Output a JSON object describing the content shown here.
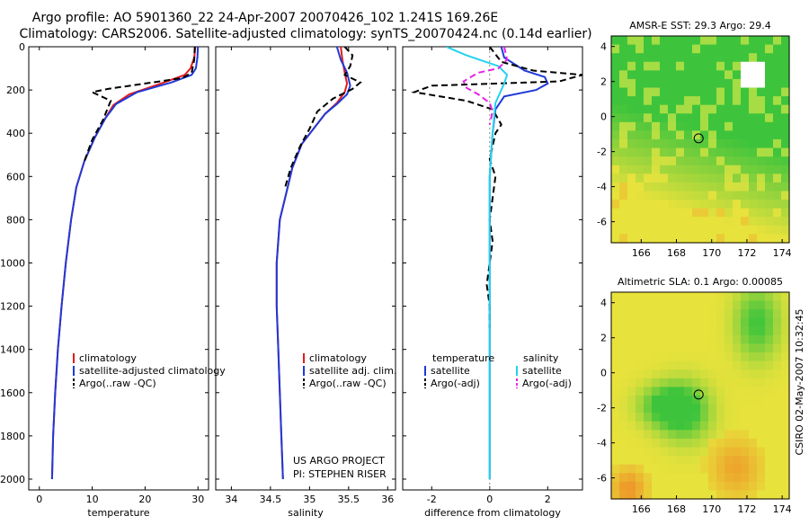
{
  "header": {
    "title_line1": "Argo profile: AO 5901360_22 24-Apr-2007 20070426_102 1.241S 169.26E",
    "title_line2": "Climatology: CARS2006. Satellite-adjusted climatology: synTS_20070424.nc (0.14d earlier)"
  },
  "footer": {
    "project": "US ARGO PROJECT",
    "pi": "PI: STEPHEN RISER",
    "credit": "CSIRO 02-May-2007 10:32:45"
  },
  "chart_data": [
    {
      "id": "temperature",
      "type": "line",
      "xlabel": "temperature",
      "xlim": [
        -2,
        32
      ],
      "ylim": [
        0,
        2050
      ],
      "y_reversed": true,
      "xticks": [
        0,
        10,
        20,
        30
      ],
      "yticks": [
        0,
        200,
        400,
        600,
        800,
        1000,
        1200,
        1400,
        1600,
        1800,
        2000
      ],
      "legend": [
        "climatology",
        "satellite-adjusted climatology",
        "Argo(..raw -QC)"
      ],
      "series": [
        {
          "name": "climatology",
          "color": "#e41a1c",
          "dash": false,
          "points": [
            [
              29.5,
              0
            ],
            [
              29.3,
              50
            ],
            [
              28.6,
              100
            ],
            [
              27.5,
              130
            ],
            [
              23,
              170
            ],
            [
              17,
              220
            ],
            [
              14,
              270
            ],
            [
              12.5,
              330
            ],
            [
              10.5,
              420
            ],
            [
              8.5,
              530
            ],
            [
              7,
              650
            ],
            [
              6,
              800
            ],
            [
              5,
              1000
            ],
            [
              4.2,
              1200
            ],
            [
              3.5,
              1400
            ],
            [
              3,
              1600
            ],
            [
              2.6,
              1800
            ],
            [
              2.4,
              2000
            ]
          ]
        },
        {
          "name": "satellite-adjusted climatology",
          "color": "#1f3ad6",
          "dash": false,
          "points": [
            [
              30,
              0
            ],
            [
              29.9,
              50
            ],
            [
              29.6,
              100
            ],
            [
              28.8,
              130
            ],
            [
              25,
              165
            ],
            [
              18.5,
              210
            ],
            [
              14.5,
              265
            ],
            [
              12.5,
              330
            ],
            [
              10.5,
              420
            ],
            [
              8.5,
              530
            ],
            [
              7,
              650
            ],
            [
              6,
              800
            ],
            [
              5,
              1000
            ],
            [
              4.2,
              1200
            ],
            [
              3.5,
              1400
            ],
            [
              3,
              1600
            ],
            [
              2.6,
              1800
            ],
            [
              2.4,
              2000
            ]
          ]
        },
        {
          "name": "Argo(..raw -QC)",
          "color": "#000000",
          "dash": true,
          "points": [
            [
              29.4,
              0
            ],
            [
              29.3,
              60
            ],
            [
              28.8,
              120
            ],
            [
              27,
              145
            ],
            [
              20,
              170
            ],
            [
              13,
              195
            ],
            [
              10,
              210
            ],
            [
              13.5,
              250
            ],
            [
              12,
              340
            ],
            [
              10,
              430
            ],
            [
              8.5,
              530
            ]
          ]
        }
      ]
    },
    {
      "id": "salinity",
      "type": "line",
      "xlabel": "salinity",
      "xlim": [
        33.8,
        36.1
      ],
      "ylim": [
        0,
        2050
      ],
      "y_reversed": true,
      "xticks": [
        34,
        34.5,
        35,
        35.5,
        36
      ],
      "legend": [
        "climatology",
        "satellite adj. clim.",
        "Argo(..raw -QC)"
      ],
      "series": [
        {
          "name": "climatology",
          "color": "#e41a1c",
          "dash": false,
          "points": [
            [
              35.4,
              0
            ],
            [
              35.42,
              60
            ],
            [
              35.45,
              120
            ],
            [
              35.48,
              170
            ],
            [
              35.45,
              210
            ],
            [
              35.35,
              260
            ],
            [
              35.2,
              310
            ],
            [
              35.05,
              380
            ],
            [
              34.9,
              450
            ],
            [
              34.78,
              560
            ],
            [
              34.7,
              680
            ],
            [
              34.62,
              800
            ],
            [
              34.58,
              1000
            ],
            [
              34.58,
              1200
            ],
            [
              34.6,
              1400
            ],
            [
              34.62,
              1600
            ],
            [
              34.64,
              1800
            ],
            [
              34.66,
              2000
            ]
          ]
        },
        {
          "name": "satellite adj. clim.",
          "color": "#1f3ad6",
          "dash": false,
          "points": [
            [
              35.35,
              0
            ],
            [
              35.4,
              60
            ],
            [
              35.48,
              120
            ],
            [
              35.52,
              180
            ],
            [
              35.48,
              220
            ],
            [
              35.35,
              265
            ],
            [
              35.2,
              310
            ],
            [
              35.05,
              380
            ],
            [
              34.9,
              450
            ],
            [
              34.78,
              560
            ],
            [
              34.7,
              680
            ],
            [
              34.62,
              800
            ],
            [
              34.58,
              1000
            ],
            [
              34.58,
              1200
            ],
            [
              34.6,
              1400
            ],
            [
              34.62,
              1600
            ],
            [
              34.64,
              1800
            ],
            [
              34.66,
              2000
            ]
          ]
        },
        {
          "name": "Argo(..raw -QC)",
          "color": "#000000",
          "dash": true,
          "points": [
            [
              35.45,
              0
            ],
            [
              35.55,
              40
            ],
            [
              35.52,
              90
            ],
            [
              35.45,
              130
            ],
            [
              35.65,
              165
            ],
            [
              35.55,
              195
            ],
            [
              35.3,
              240
            ],
            [
              35.1,
              300
            ],
            [
              35.0,
              380
            ],
            [
              34.88,
              460
            ],
            [
              34.76,
              560
            ],
            [
              34.68,
              660
            ]
          ]
        }
      ]
    },
    {
      "id": "difference",
      "type": "line",
      "xlabel": "difference from climatology",
      "xlim": [
        -3,
        3.2
      ],
      "ylim": [
        0,
        2050
      ],
      "y_reversed": true,
      "xticks": [
        -2,
        0,
        2
      ],
      "legend": [
        "temperature",
        "satellite",
        "Argo(-adj)",
        "salinity",
        "satellite",
        "Argo(-adj)"
      ],
      "series": [
        {
          "name": "temperature satellite",
          "color": "#1f3ad6",
          "dash": false,
          "points": [
            [
              0.4,
              0
            ],
            [
              0.5,
              50
            ],
            [
              1.2,
              110
            ],
            [
              1.9,
              140
            ],
            [
              2,
              170
            ],
            [
              1.6,
              200
            ],
            [
              0.5,
              230
            ],
            [
              0.2,
              290
            ],
            [
              0.1,
              400
            ],
            [
              0,
              600
            ],
            [
              0,
              800
            ],
            [
              0,
              1000
            ],
            [
              0,
              1200
            ],
            [
              0,
              1400
            ],
            [
              0,
              1600
            ],
            [
              0,
              1800
            ],
            [
              0,
              2000
            ]
          ]
        },
        {
          "name": "temperature Argo(-adj)",
          "color": "#000000",
          "dash": true,
          "points": [
            [
              0,
              0
            ],
            [
              0.4,
              70
            ],
            [
              1.5,
              110
            ],
            [
              3.2,
              130
            ],
            [
              2.4,
              160
            ],
            [
              -2,
              180
            ],
            [
              -2.6,
              210
            ],
            [
              -0.8,
              250
            ],
            [
              0.1,
              290
            ],
            [
              0.4,
              360
            ],
            [
              0.2,
              400
            ],
            [
              0,
              520
            ],
            [
              0.2,
              600
            ],
            [
              0.1,
              700
            ],
            [
              0,
              800
            ],
            [
              0.1,
              900
            ],
            [
              0,
              1000
            ],
            [
              -0.1,
              1100
            ],
            [
              0,
              1200
            ],
            [
              0,
              1300
            ]
          ]
        },
        {
          "name": "salinity satellite",
          "color": "#22d3ee",
          "dash": false,
          "points": [
            [
              -1.5,
              0
            ],
            [
              -0.8,
              40
            ],
            [
              0.3,
              90
            ],
            [
              0.6,
              130
            ],
            [
              0.5,
              170
            ],
            [
              0.4,
              200
            ],
            [
              0.2,
              260
            ],
            [
              0.1,
              400
            ],
            [
              0,
              600
            ],
            [
              0,
              800
            ],
            [
              0,
              1000
            ],
            [
              0,
              1200
            ],
            [
              0,
              1400
            ],
            [
              0,
              1600
            ],
            [
              0,
              1800
            ],
            [
              0,
              2000
            ]
          ]
        },
        {
          "name": "salinity Argo(-adj)",
          "color": "#e622e6",
          "dash": true,
          "points": [
            [
              0.5,
              0
            ],
            [
              0.6,
              60
            ],
            [
              0.3,
              100
            ],
            [
              -0.4,
              120
            ],
            [
              -0.9,
              160
            ],
            [
              -0.8,
              190
            ],
            [
              -0.4,
              220
            ],
            [
              0,
              260
            ],
            [
              0.1,
              300
            ],
            [
              0,
              360
            ]
          ]
        }
      ]
    },
    {
      "id": "sst_map",
      "type": "heatmap",
      "title": "AMSR-E SST: 29.3 Argo: 29.4",
      "xlim": [
        164.3,
        174.4
      ],
      "ylim": [
        -7.2,
        4.6
      ],
      "xticks": [
        166,
        168,
        170,
        172,
        174
      ],
      "yticks": [
        -6,
        -4,
        -2,
        0,
        2,
        4
      ],
      "marker": {
        "lon": 169.26,
        "lat": -1.241
      }
    },
    {
      "id": "sla_map",
      "type": "heatmap",
      "title": "Altimetric SLA: 0.1 Argo: 0.00085",
      "xlim": [
        164.3,
        174.4
      ],
      "ylim": [
        -7.2,
        4.6
      ],
      "xticks": [
        166,
        168,
        170,
        172,
        174
      ],
      "yticks": [
        -6,
        -4,
        -2,
        0,
        2,
        4
      ],
      "marker": {
        "lon": 169.26,
        "lat": -1.241
      }
    }
  ]
}
